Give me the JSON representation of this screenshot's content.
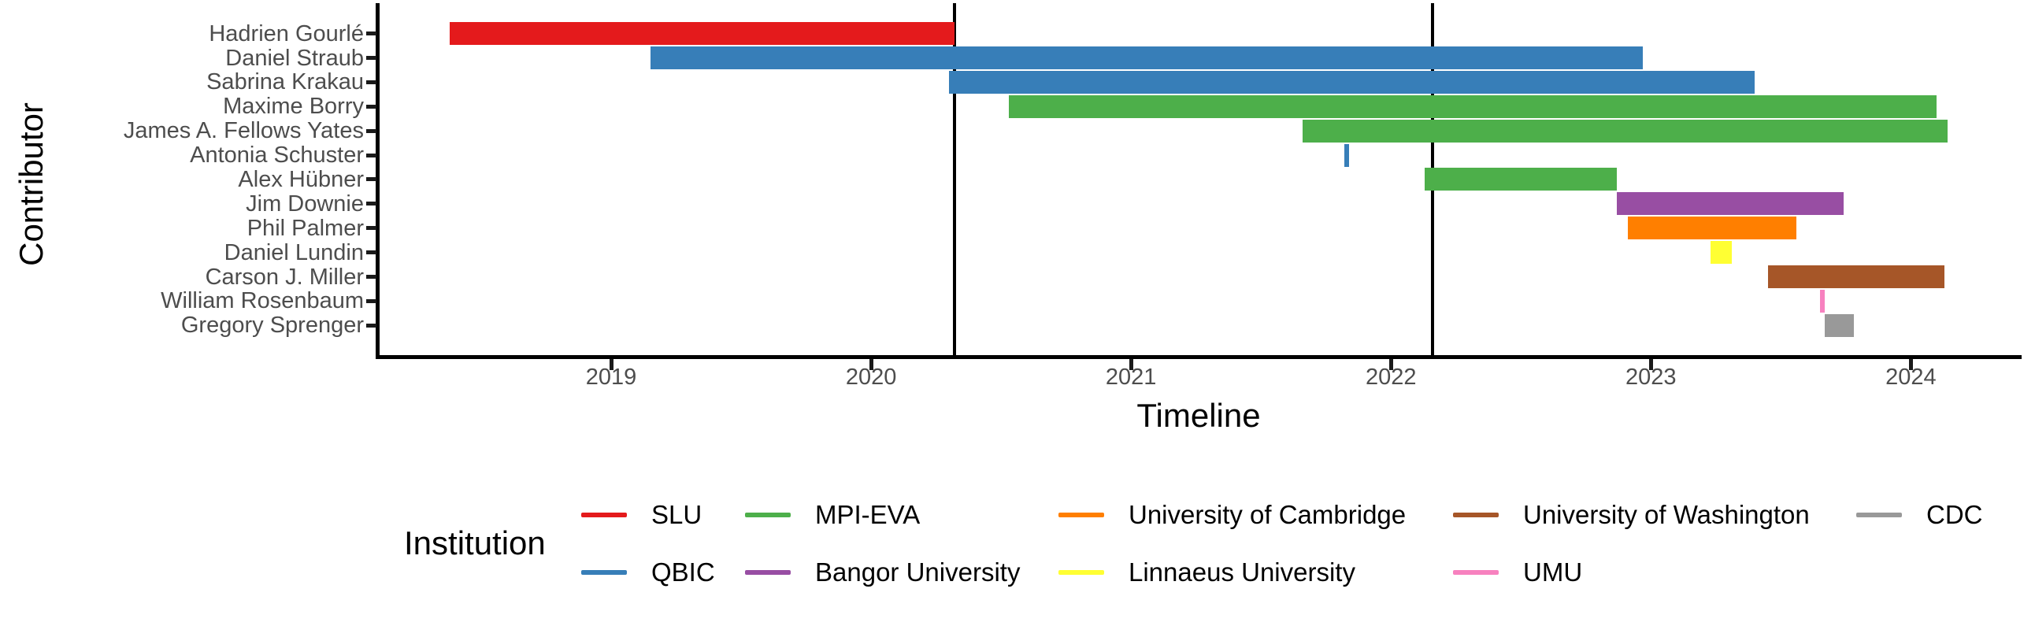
{
  "figure": {
    "background": "#FFFFFF"
  },
  "chart_data": {
    "type": "bar",
    "subtype": "horizontal-gantt-timeline",
    "title": "",
    "xlabel": "Timeline",
    "ylabel": "Contributor",
    "legend_title": "Institution",
    "x_domain": [
      2018.1,
      2024.42
    ],
    "x_ticks": [
      2019,
      2020,
      2021,
      2022,
      2023,
      2024
    ],
    "grid": "off",
    "legend_position": "bottom",
    "vlines": [
      2020.32,
      2022.16
    ],
    "institutions": [
      {
        "name": "SLU",
        "color": "#E41A1C"
      },
      {
        "name": "QBIC",
        "color": "#377EB8"
      },
      {
        "name": "MPI-EVA",
        "color": "#4DAF4A"
      },
      {
        "name": "Bangor University",
        "color": "#984EA3"
      },
      {
        "name": "University of Cambridge",
        "color": "#FF7F00"
      },
      {
        "name": "Linnaeus University",
        "color": "#FFFF33"
      },
      {
        "name": "University of Washington",
        "color": "#A65628"
      },
      {
        "name": "UMU",
        "color": "#F781BF"
      },
      {
        "name": "CDC",
        "color": "#999999"
      }
    ],
    "contributors": [
      {
        "name": "Hadrien Gourlé",
        "institution": "SLU",
        "start": 2018.38,
        "end": 2020.32
      },
      {
        "name": "Daniel Straub",
        "institution": "QBIC",
        "start": 2019.15,
        "end": 2022.97
      },
      {
        "name": "Sabrina Krakau",
        "institution": "QBIC",
        "start": 2020.3,
        "end": 2023.4
      },
      {
        "name": "Maxime Borry",
        "institution": "MPI-EVA",
        "start": 2020.53,
        "end": 2024.1
      },
      {
        "name": "James A. Fellows Yates",
        "institution": "MPI-EVA",
        "start": 2021.66,
        "end": 2024.14
      },
      {
        "name": "Antonia Schuster",
        "institution": "QBIC",
        "start": 2021.82,
        "end": 2021.84
      },
      {
        "name": "Alex Hübner",
        "institution": "MPI-EVA",
        "start": 2022.13,
        "end": 2022.87
      },
      {
        "name": "Jim Downie",
        "institution": "Bangor University",
        "start": 2022.87,
        "end": 2023.74
      },
      {
        "name": "Phil Palmer",
        "institution": "University of Cambridge",
        "start": 2022.91,
        "end": 2023.56
      },
      {
        "name": "Daniel Lundin",
        "institution": "Linnaeus University",
        "start": 2023.23,
        "end": 2023.31
      },
      {
        "name": "Carson J. Miller",
        "institution": "University of Washington",
        "start": 2023.45,
        "end": 2024.13
      },
      {
        "name": "William Rosenbaum",
        "institution": "UMU",
        "start": 2023.65,
        "end": 2023.67
      },
      {
        "name": "Gregory Sprenger",
        "institution": "CDC",
        "start": 2023.67,
        "end": 2023.78
      }
    ],
    "legend_columns": [
      [
        "SLU",
        "QBIC"
      ],
      [
        "MPI-EVA",
        "Bangor University"
      ],
      [
        "University of Cambridge",
        "Linnaeus University"
      ],
      [
        "University of Washington",
        "UMU"
      ],
      [
        "CDC"
      ]
    ]
  }
}
